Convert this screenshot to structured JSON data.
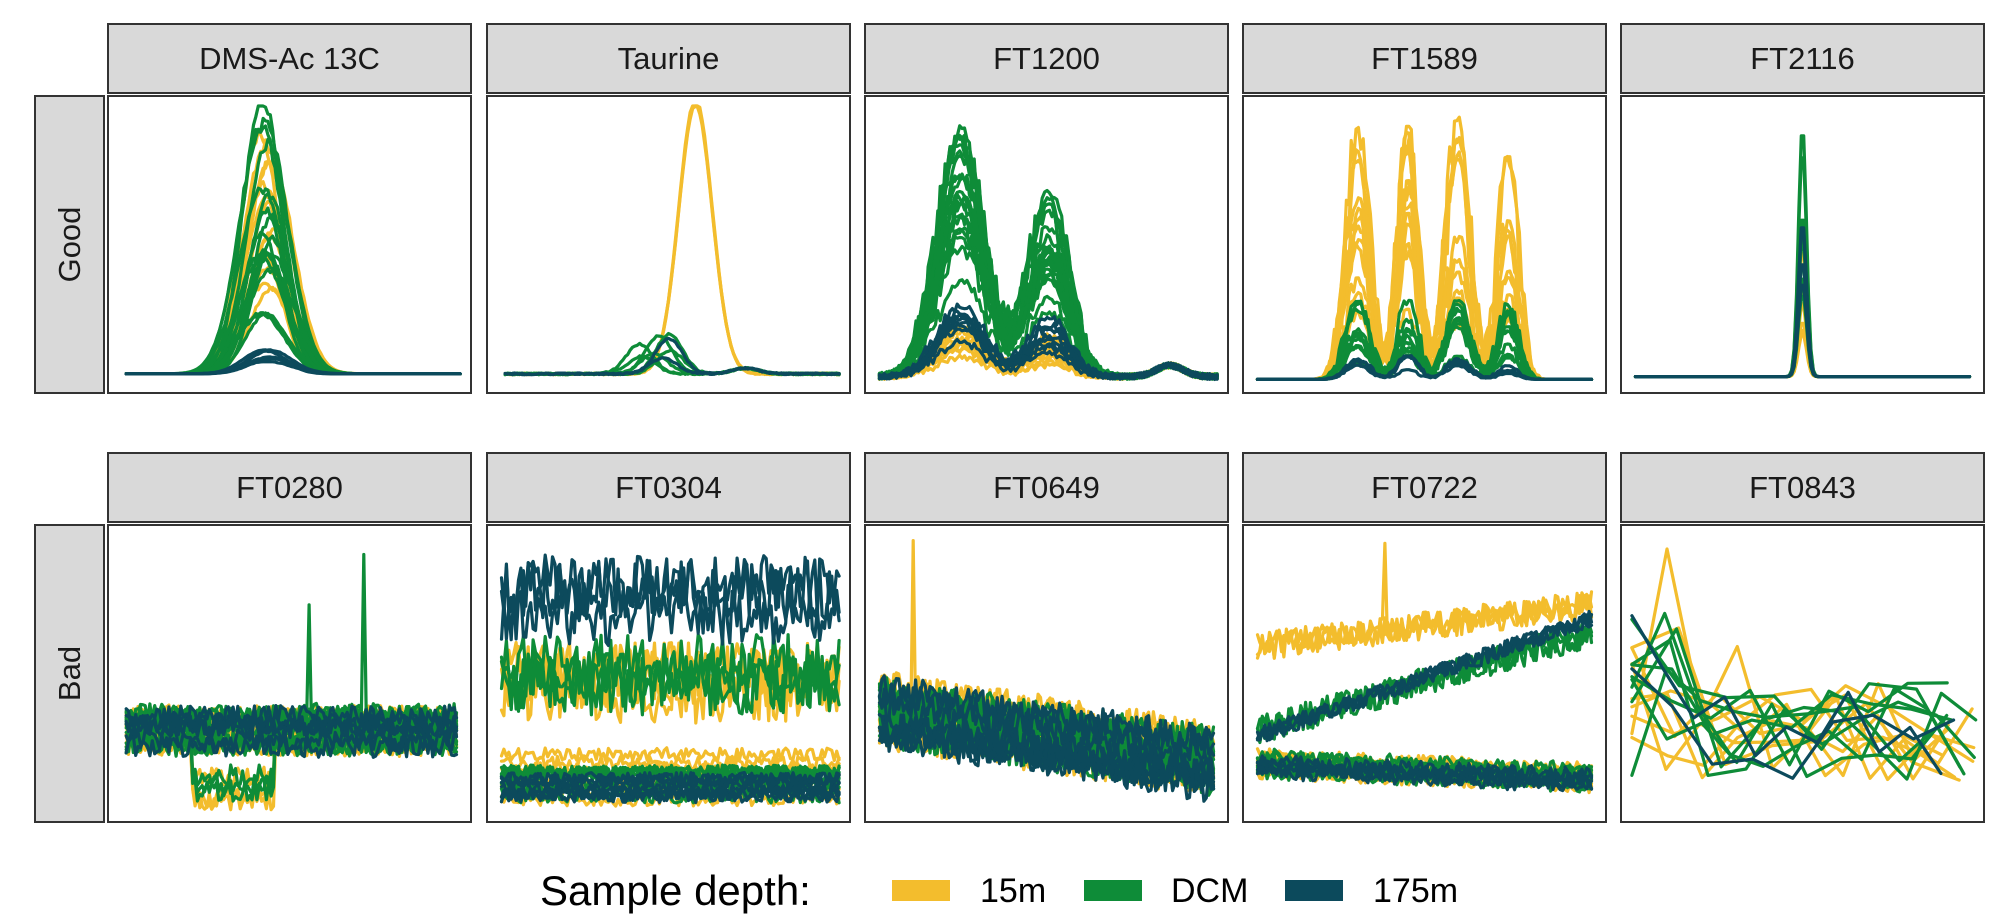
{
  "legend": {
    "title": "Sample depth:",
    "items": [
      {
        "label": "15m",
        "color": "#F3BD2D"
      },
      {
        "label": "DCM",
        "color": "#0E8C38"
      },
      {
        "label": "175m",
        "color": "#0C4A5C"
      }
    ]
  },
  "chart_data": {
    "type": "line",
    "facet_rows": [
      "Good",
      "Bad"
    ],
    "facet_columns": [
      [
        "DMS-Ac 13C",
        "Taurine",
        "FT1200",
        "FT1589",
        "FT2116"
      ],
      [
        "FT0280",
        "FT0304",
        "FT0649",
        "FT0722",
        "FT0843"
      ]
    ],
    "axes": "none",
    "grid": false,
    "legend_position": "bottom",
    "series_colors": {
      "15m": "#F3BD2D",
      "DCM": "#0E8C38",
      "175m": "#0C4A5C"
    },
    "panels": [
      {
        "row": "Good",
        "title": "DMS-Ac 13C",
        "shape": "single-peak",
        "traces": {
          "15m": 14,
          "DCM": 18,
          "175m": 6
        }
      },
      {
        "row": "Good",
        "title": "Taurine",
        "shape": "single-peak-15m-dominant",
        "traces": {
          "15m": 3,
          "DCM": 6,
          "175m": 2
        }
      },
      {
        "row": "Good",
        "title": "FT1200",
        "shape": "double-peak",
        "traces": {
          "15m": 10,
          "DCM": 20,
          "175m": 8
        }
      },
      {
        "row": "Good",
        "title": "FT1589",
        "shape": "multi-peak",
        "traces": {
          "15m": 12,
          "DCM": 10,
          "175m": 4
        }
      },
      {
        "row": "Good",
        "title": "FT2116",
        "shape": "narrow-single-peak",
        "traces": {
          "15m": 8,
          "DCM": 10,
          "175m": 4
        }
      },
      {
        "row": "Bad",
        "title": "FT0280",
        "shape": "noise-with-spikes",
        "traces": {
          "15m": 12,
          "DCM": 14,
          "175m": 6
        }
      },
      {
        "row": "Bad",
        "title": "FT0304",
        "shape": "noisy-bands",
        "traces": {
          "15m": 10,
          "DCM": 12,
          "175m": 10
        }
      },
      {
        "row": "Bad",
        "title": "FT0649",
        "shape": "noisy-decreasing",
        "traces": {
          "15m": 10,
          "DCM": 12,
          "175m": 8
        }
      },
      {
        "row": "Bad",
        "title": "FT0722",
        "shape": "noisy-diverging",
        "traces": {
          "15m": 10,
          "DCM": 10,
          "175m": 8
        }
      },
      {
        "row": "Bad",
        "title": "FT0843",
        "shape": "sparse-zigzag",
        "traces": {
          "15m": 8,
          "DCM": 8,
          "175m": 2
        }
      }
    ]
  }
}
